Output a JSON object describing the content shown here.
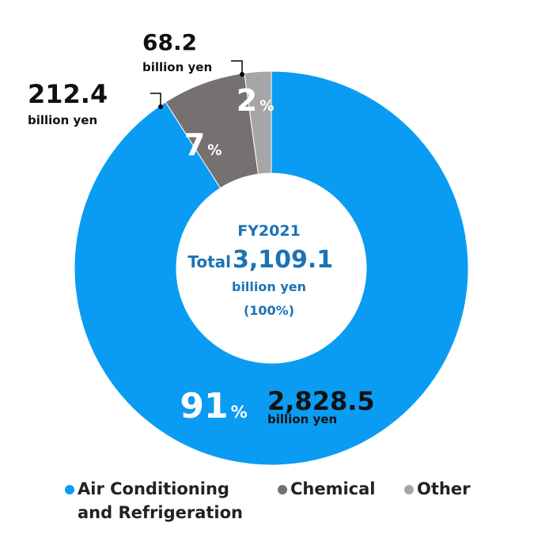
{
  "chart_data": {
    "type": "donut",
    "categories": [
      "Air Conditioning and Refrigeration",
      "Chemical",
      "Other"
    ],
    "values": [
      2828.5,
      212.4,
      68.2
    ],
    "value_labels": [
      "2,828.5",
      "212.4",
      "68.2"
    ],
    "unit": "billion yen",
    "percents": [
      91,
      7,
      2
    ],
    "percent_sign": "%",
    "colors": [
      "#0a9cf2",
      "#767171",
      "#a6a6a6"
    ],
    "center": {
      "period": "FY2021",
      "total_label": "Total",
      "total": {
        "value": 3109.1,
        "label": "3,109.1"
      },
      "unit": "billion yen",
      "share": "(100%)"
    }
  }
}
